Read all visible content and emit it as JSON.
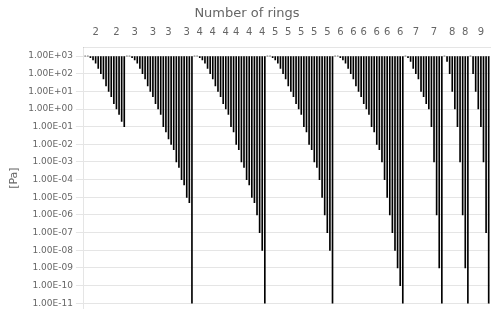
{
  "chart_data": {
    "type": "bar",
    "title": "Number of rings",
    "y_label": "[Pa]",
    "color": "#000000",
    "log": "y",
    "grid": true,
    "ylim": [
      5e-12,
      3000
    ],
    "yticks": [
      {
        "value": 1000,
        "label": "1.00E+03"
      },
      {
        "value": 100,
        "label": "1.00E+02"
      },
      {
        "value": 10,
        "label": "1.00E+01"
      },
      {
        "value": 1,
        "label": "1.00E+00"
      },
      {
        "value": 0.1,
        "label": "1.00E-01"
      },
      {
        "value": 0.01,
        "label": "1.00E-02"
      },
      {
        "value": 0.001,
        "label": "1.00E-03"
      },
      {
        "value": 0.0001,
        "label": "1.00E-04"
      },
      {
        "value": 1e-05,
        "label": "1.00E-05"
      },
      {
        "value": 1e-06,
        "label": "1.00E-06"
      },
      {
        "value": 1e-07,
        "label": "1.00E-07"
      },
      {
        "value": 1e-08,
        "label": "1.00E-08"
      },
      {
        "value": 1e-09,
        "label": "1.00E-09"
      },
      {
        "value": 1e-10,
        "label": "1.00E-10"
      },
      {
        "value": 1e-11,
        "label": "1.00E-11"
      }
    ],
    "categories": [
      null,
      null,
      null,
      null,
      2,
      null,
      null,
      null,
      null,
      null,
      null,
      null,
      2,
      null,
      null,
      null,
      null,
      null,
      null,
      3,
      null,
      null,
      null,
      null,
      null,
      null,
      3,
      null,
      null,
      null,
      null,
      null,
      3,
      null,
      null,
      null,
      null,
      null,
      null,
      3,
      null,
      null,
      null,
      null,
      4,
      null,
      null,
      null,
      null,
      4,
      null,
      null,
      null,
      null,
      4,
      null,
      null,
      null,
      4,
      null,
      null,
      null,
      null,
      4,
      null,
      null,
      null,
      null,
      4,
      null,
      null,
      null,
      null,
      5,
      null,
      null,
      null,
      null,
      5,
      null,
      null,
      null,
      null,
      5,
      null,
      null,
      null,
      null,
      5,
      null,
      null,
      null,
      null,
      5,
      null,
      null,
      null,
      null,
      6,
      null,
      null,
      null,
      null,
      6,
      null,
      null,
      null,
      6,
      null,
      null,
      null,
      null,
      6,
      null,
      null,
      null,
      6,
      null,
      null,
      null,
      null,
      6,
      null,
      null,
      null,
      null,
      null,
      7,
      null,
      null,
      null,
      null,
      null,
      null,
      7,
      null,
      null,
      null,
      null,
      null,
      null,
      8,
      null,
      null,
      null,
      null,
      8,
      null,
      null,
      null,
      null,
      null,
      9,
      null,
      null,
      null
    ],
    "values": [
      1000,
      1000,
      800,
      600,
      400,
      200,
      100,
      50,
      20,
      10,
      5,
      2,
      1,
      0.5,
      0.2,
      0.1,
      1000,
      1000,
      800,
      600,
      400,
      200,
      100,
      50,
      20,
      10,
      5,
      2,
      1,
      0.5,
      0.1,
      0.05,
      0.02,
      0.01,
      0.005,
      0.001,
      0.0005,
      0.0001,
      5e-05,
      1e-05,
      5e-06,
      1e-11,
      1000,
      1000,
      800,
      600,
      400,
      200,
      100,
      50,
      20,
      10,
      5,
      2,
      1,
      0.5,
      0.1,
      0.05,
      0.01,
      0.005,
      0.001,
      0.0005,
      0.0001,
      5e-05,
      1e-05,
      5e-06,
      1e-06,
      1e-07,
      1e-08,
      1e-11,
      1000,
      1000,
      800,
      600,
      400,
      200,
      100,
      50,
      20,
      10,
      5,
      2,
      1,
      0.5,
      0.1,
      0.05,
      0.01,
      0.005,
      0.001,
      0.0005,
      0.0001,
      1e-05,
      1e-06,
      1e-07,
      1e-08,
      1e-11,
      1000,
      1000,
      800,
      600,
      400,
      200,
      100,
      50,
      20,
      10,
      5,
      2,
      1,
      0.5,
      0.1,
      0.05,
      0.01,
      0.005,
      0.001,
      0.0001,
      1e-05,
      1e-06,
      1e-07,
      1e-08,
      1e-09,
      1e-10,
      1e-11,
      1000,
      800,
      500,
      200,
      100,
      50,
      10,
      5,
      2,
      1,
      0.1,
      0.001,
      1e-06,
      1e-09,
      1e-11,
      1000,
      500,
      100,
      10,
      1,
      0.1,
      0.001,
      1e-06,
      1e-09,
      1e-11,
      1000,
      100,
      10,
      1,
      0.1,
      0.001,
      1e-07,
      1e-11
    ]
  }
}
